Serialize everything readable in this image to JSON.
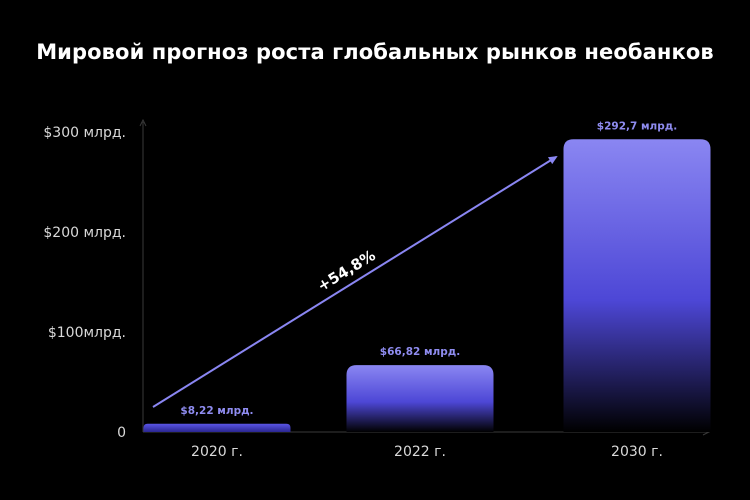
{
  "chart_data": {
    "type": "bar",
    "title": "Мировой прогноз роста глобальных рынков необанков",
    "categories": [
      "2020 г.",
      "2022 г.",
      "2030 г."
    ],
    "values": [
      8.22,
      66.82,
      292.7
    ],
    "data_labels": [
      "$8,22 млрд.",
      "$66,82 млрд.",
      "$292,7 млрд."
    ],
    "y_ticks": [
      {
        "value": 0,
        "label": "0"
      },
      {
        "value": 100,
        "label": "$100млрд."
      },
      {
        "value": 200,
        "label": "$200 млрд."
      },
      {
        "value": 300,
        "label": "$300 млрд."
      }
    ],
    "ylim": [
      0,
      300
    ],
    "grid": false,
    "annotation": {
      "text": "+54,8%"
    },
    "colors": {
      "bar_top": "#8a86f2",
      "bar_bottom": "#000000",
      "arrow": "#8a86f2",
      "label": "#8f8cf0"
    }
  }
}
